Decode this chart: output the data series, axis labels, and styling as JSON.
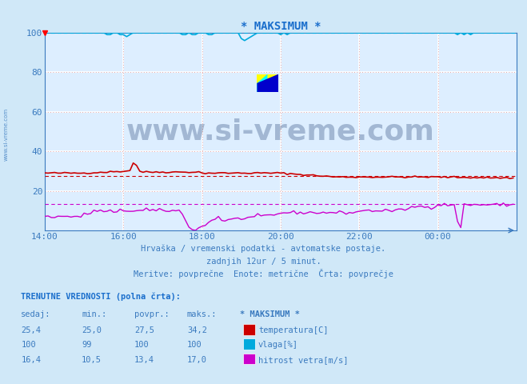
{
  "title": "* MAKSIMUM *",
  "title_color": "#1a6ecc",
  "bg_color": "#d0e8f8",
  "plot_bg_color": "#ddeeff",
  "grid_color": "#ffffff",
  "grid_dot_color": "#e09090",
  "axis_color": "#3a7abf",
  "xlabel_ticks": [
    "14:00",
    "16:00",
    "18:00",
    "20:00",
    "22:00",
    "00:00"
  ],
  "yticks": [
    20,
    40,
    60,
    80,
    100
  ],
  "xlim": [
    0,
    144
  ],
  "ylim": [
    0,
    100
  ],
  "temp_color": "#cc0000",
  "humidity_color": "#00aadd",
  "wind_color": "#cc00cc",
  "temp_avg": 27.5,
  "wind_avg": 13.4,
  "humidity_avg": 100,
  "subtitle1": "Hrvaška / vremenski podatki - avtomatske postaje.",
  "subtitle2": "zadnjih 12ur / 5 minut.",
  "subtitle3": "Meritve: povprečne  Enote: metrične  Črta: povprečje",
  "table_header": "TRENUTNE VREDNOSTI (polna črta):",
  "col_headers": [
    "sedaj:",
    "min.:",
    "povpr.:",
    "maks.:",
    "* MAKSIMUM *"
  ],
  "row1": [
    "25,4",
    "25,0",
    "27,5",
    "34,2"
  ],
  "row2": [
    "100",
    "99",
    "100",
    "100"
  ],
  "row3": [
    "16,4",
    "10,5",
    "13,4",
    "17,0"
  ],
  "legend1": "temperatura[C]",
  "legend2": "vlaga[%]",
  "legend3": "hitrost vetra[m/s]",
  "watermark": "www.si-vreme.com",
  "watermark_color": "#1a3a6e",
  "side_text": "www.si-vreme.com"
}
